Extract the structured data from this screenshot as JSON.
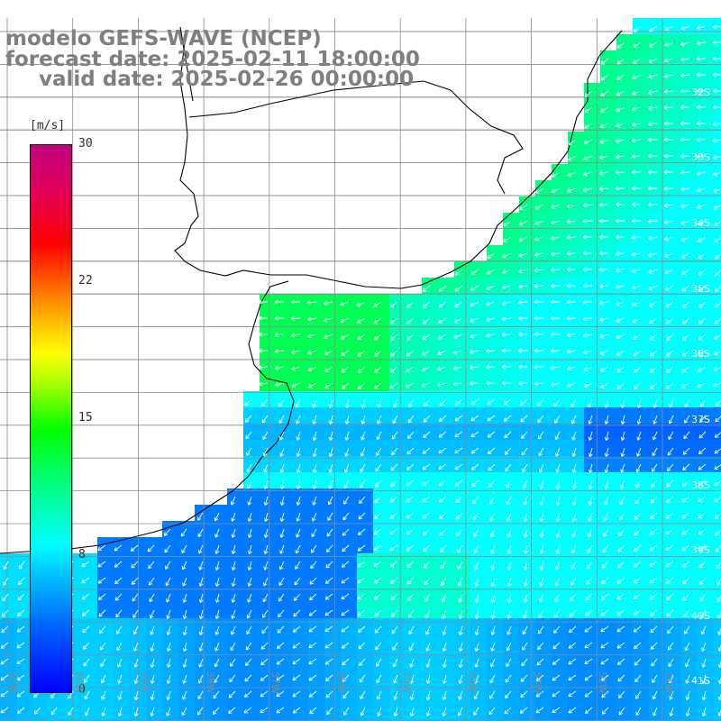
{
  "title": {
    "line1": "modelo GEFS-WAVE (NCEP)",
    "line2": "forecast date: 2025-02-11 18:00:00",
    "line3": "valid date: 2025-02-26 00:00:00"
  },
  "colorbar": {
    "unit": "[m/s]",
    "min": 0,
    "max": 30,
    "ticks": [
      "30",
      "22",
      "15",
      "8",
      "0"
    ]
  },
  "lat_labels": [
    "32S",
    "33S",
    "34S",
    "35S",
    "36S",
    "37S",
    "38S",
    "39S",
    "40S",
    "41S"
  ],
  "lon_labels": [
    "61W",
    "60W",
    "59W",
    "58W",
    "57W",
    "56W",
    "55W",
    "54W",
    "53W",
    "52W",
    "51W"
  ],
  "colors": {
    "land": "#ffffff",
    "coastline": "#000000",
    "grid": "#8c8c8c",
    "title_text": "#7f7f7f",
    "wind_arrows": "#ffffff"
  },
  "map_data": {
    "variable": "wind speed (m/s) with direction arrows",
    "lat_range": [
      "28S",
      "41S"
    ],
    "lon_range": [
      "62W",
      "51W"
    ],
    "grid_spacing_deg": 0.5,
    "wind_speed_zones_mps": {
      "rio_de_la_plata": 12,
      "northeast_shelf": 11,
      "open_ocean": 8,
      "band_near_38S": 3,
      "southwest_shelf": 4
    }
  }
}
